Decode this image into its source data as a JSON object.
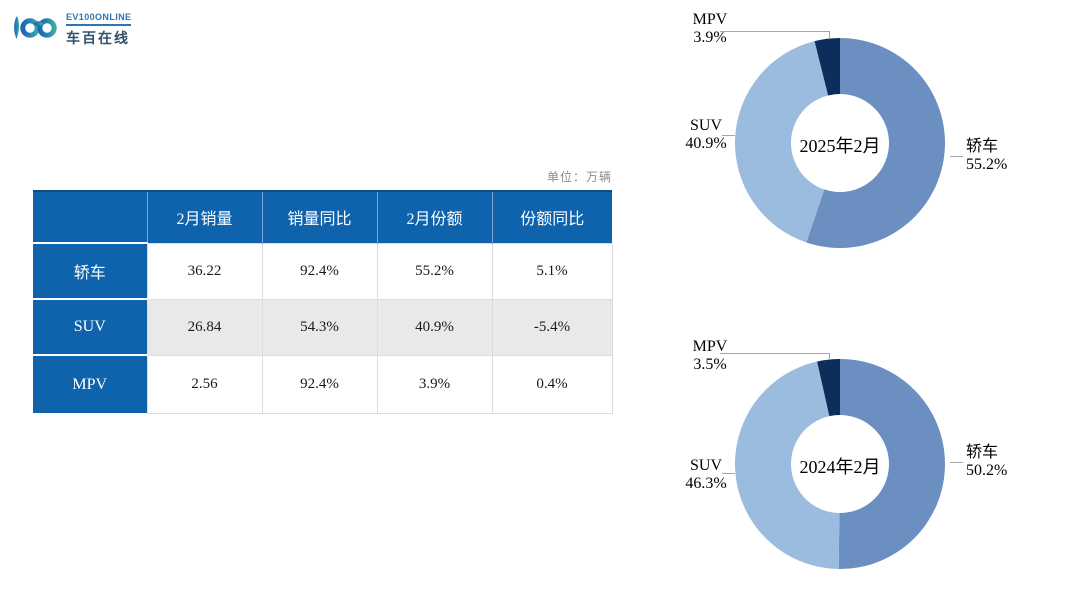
{
  "logo": {
    "brand_en": "EV100ONLINE",
    "brand_cn": "车百在线"
  },
  "unit_note": "单位：万辆",
  "table": {
    "headers": [
      "",
      "2月销量",
      "销量同比",
      "2月份额",
      "份额同比"
    ],
    "rows": [
      {
        "name": "轿车",
        "cells": [
          "36.22",
          "92.4%",
          "55.2%",
          "5.1%"
        ]
      },
      {
        "name": "SUV",
        "cells": [
          "26.84",
          "54.3%",
          "40.9%",
          "-5.4%"
        ]
      },
      {
        "name": "MPV",
        "cells": [
          "2.56",
          "92.4%",
          "3.9%",
          "0.4%"
        ]
      }
    ]
  },
  "colors": {
    "table_header_blue": "#0F63AC",
    "sedan_blue": "#6B8FC1",
    "suv_blue": "#9BBBDF",
    "mpv_navy": "#0D2D5B",
    "row_alt_gray": "#E9E9E9",
    "leader_gray": "#A6A6A6"
  },
  "chart_data": [
    {
      "type": "pie",
      "subtype": "donut",
      "center_label": "2025年2月",
      "categories": [
        "轿车",
        "SUV",
        "MPV"
      ],
      "values": [
        55.2,
        40.9,
        3.9
      ],
      "unit": "%",
      "colors": [
        "#6B8FC1",
        "#9BBBDF",
        "#0D2D5B"
      ],
      "start_angle_deg": 0,
      "direction": "clockwise",
      "callouts": {
        "mpv": {
          "name": "MPV",
          "pct": "3.9%"
        },
        "suv": {
          "name": "SUV",
          "pct": "40.9%"
        },
        "sedan": {
          "name": "轿车",
          "pct": "55.2%"
        }
      }
    },
    {
      "type": "pie",
      "subtype": "donut",
      "center_label": "2024年2月",
      "categories": [
        "轿车",
        "SUV",
        "MPV"
      ],
      "values": [
        50.2,
        46.3,
        3.5
      ],
      "unit": "%",
      "colors": [
        "#6B8FC1",
        "#9BBBDF",
        "#0D2D5B"
      ],
      "start_angle_deg": 0,
      "direction": "clockwise",
      "callouts": {
        "mpv": {
          "name": "MPV",
          "pct": "3.5%"
        },
        "suv": {
          "name": "SUV",
          "pct": "46.3%"
        },
        "sedan": {
          "name": "轿车",
          "pct": "50.2%"
        }
      }
    }
  ]
}
